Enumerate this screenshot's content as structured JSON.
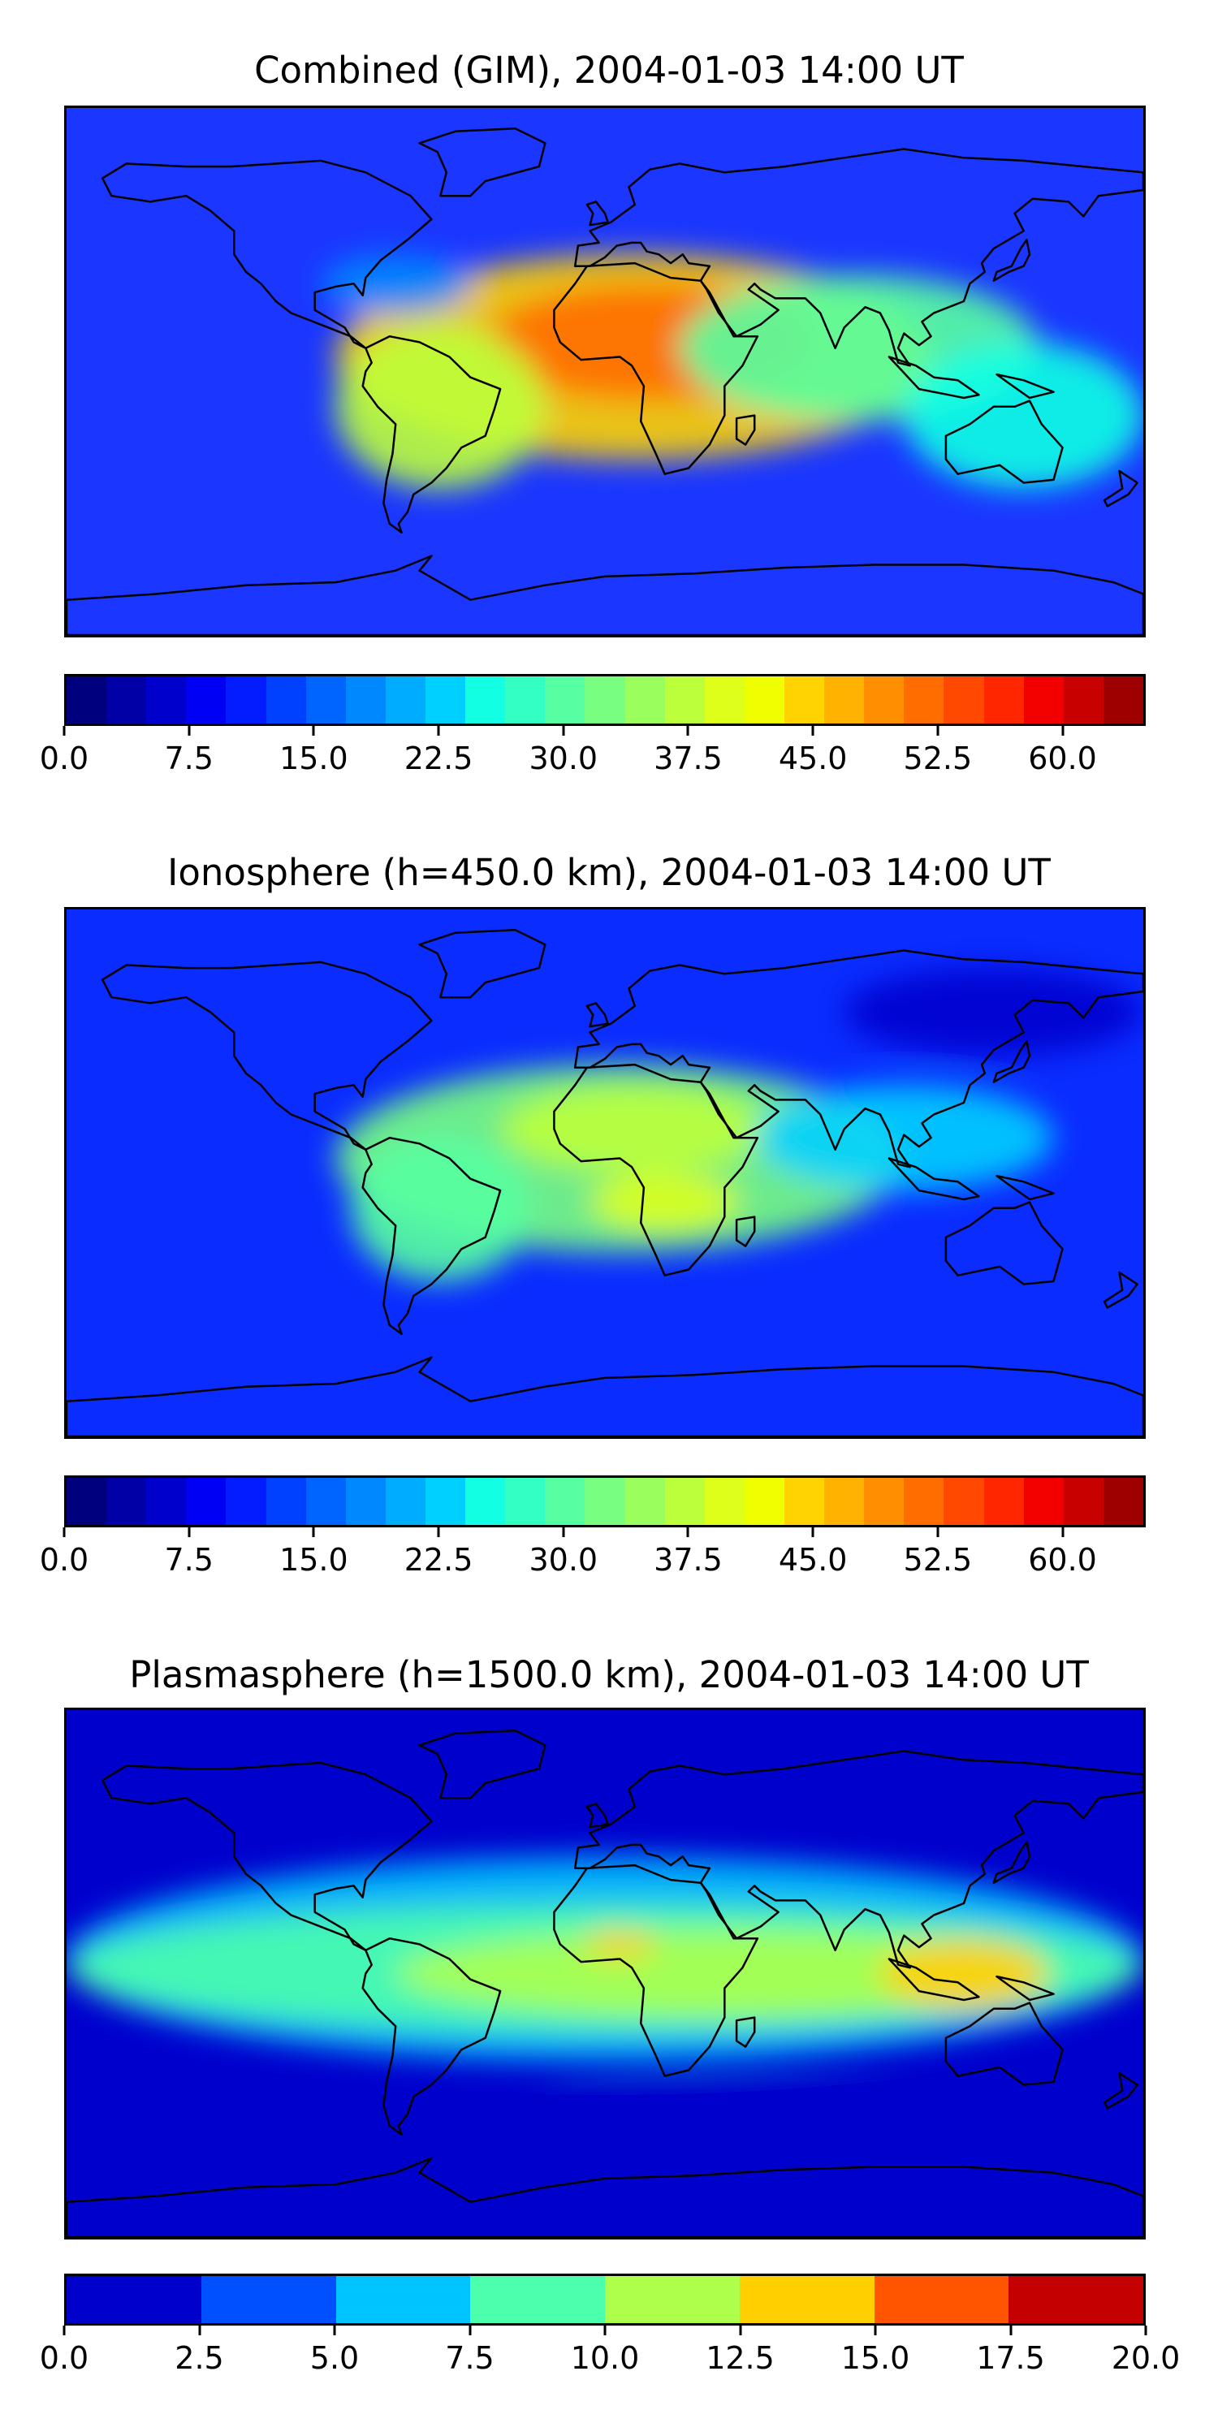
{
  "panels": [
    {
      "title": "Combined (GIM), 2004-01-03 14:00 UT",
      "base_color": "#1a36ff",
      "colorbar": {
        "colors": [
          "#00007f",
          "#0000a6",
          "#0000cd",
          "#0000f5",
          "#001cff",
          "#0040ff",
          "#0064ff",
          "#0088ff",
          "#00acff",
          "#00d0ff",
          "#12ffe4",
          "#34ffc3",
          "#56ffa1",
          "#78ff7f",
          "#9aff5d",
          "#bcff3b",
          "#deff19",
          "#f0ff00",
          "#ffd300",
          "#ffb200",
          "#ff8f00",
          "#ff6c00",
          "#ff4900",
          "#ff2600",
          "#f20000",
          "#c80000",
          "#9e0000"
        ],
        "ticks": [
          "0.0",
          "7.5",
          "15.0",
          "22.5",
          "30.0",
          "37.5",
          "45.0",
          "52.5",
          "60.0"
        ],
        "range": [
          0,
          65
        ]
      },
      "blobs": [
        {
          "lon": 10,
          "lat": 5,
          "rx": 100,
          "ry": 35,
          "value": 45
        },
        {
          "lon": 15,
          "lat": 10,
          "rx": 55,
          "ry": 20,
          "value": 52
        },
        {
          "lon": -55,
          "lat": -12,
          "rx": 35,
          "ry": 28,
          "value": 38
        },
        {
          "lon": 85,
          "lat": 8,
          "rx": 60,
          "ry": 25,
          "value": 30
        },
        {
          "lon": 140,
          "lat": -15,
          "rx": 40,
          "ry": 25,
          "value": 26
        },
        {
          "lon": -70,
          "lat": 30,
          "rx": 25,
          "ry": 10,
          "value": 18
        }
      ]
    },
    {
      "title": "Ionosphere  (h=450.0 km), 2004-01-03 14:00 UT",
      "base_color": "#0a2cff",
      "colorbar": {
        "colors": [
          "#00007f",
          "#0000a6",
          "#0000cd",
          "#0000f5",
          "#001cff",
          "#0040ff",
          "#0064ff",
          "#0088ff",
          "#00acff",
          "#00d0ff",
          "#12ffe4",
          "#34ffc3",
          "#56ffa1",
          "#78ff7f",
          "#9aff5d",
          "#bcff3b",
          "#deff19",
          "#f0ff00",
          "#ffd300",
          "#ffb200",
          "#ff8f00",
          "#ff6c00",
          "#ff4900",
          "#ff2600",
          "#f20000",
          "#c80000",
          "#9e0000"
        ],
        "ticks": [
          "0.0",
          "7.5",
          "15.0",
          "22.5",
          "30.0",
          "37.5",
          "45.0",
          "52.5",
          "60.0"
        ],
        "range": [
          0,
          65
        ]
      },
      "blobs": [
        {
          "lon": 5,
          "lat": 5,
          "rx": 95,
          "ry": 32,
          "value": 32
        },
        {
          "lon": 10,
          "lat": 15,
          "rx": 45,
          "ry": 15,
          "value": 38
        },
        {
          "lon": 20,
          "lat": -10,
          "rx": 25,
          "ry": 10,
          "value": 40
        },
        {
          "lon": -55,
          "lat": -12,
          "rx": 30,
          "ry": 25,
          "value": 30
        },
        {
          "lon": 100,
          "lat": 12,
          "rx": 50,
          "ry": 18,
          "value": 22
        },
        {
          "lon": 130,
          "lat": 55,
          "rx": 50,
          "ry": 15,
          "value": 5
        }
      ]
    },
    {
      "title": "Plasmasphere (h=1500.0 km), 2004-01-03 14:00 UT",
      "base_color": "#0000cd",
      "colorbar": {
        "colors": [
          "#0000cd",
          "#0050ff",
          "#00c4ff",
          "#4bffad",
          "#adff4b",
          "#ffcf00",
          "#ff5400",
          "#c50000"
        ],
        "ticks": [
          "0.0",
          "2.5",
          "5.0",
          "7.5",
          "10.0",
          "12.5",
          "15.0",
          "17.5",
          "20.0"
        ],
        "range": [
          0,
          20
        ]
      },
      "blobs": [
        {
          "lon": 0,
          "lat": 5,
          "rx": 180,
          "ry": 35,
          "value": 6
        },
        {
          "lon": 0,
          "lat": 2,
          "rx": 180,
          "ry": 22,
          "value": 8.5
        },
        {
          "lon": 40,
          "lat": 0,
          "rx": 110,
          "ry": 15,
          "value": 11
        },
        {
          "lon": 120,
          "lat": 0,
          "rx": 28,
          "ry": 12,
          "value": 13.5
        },
        {
          "lon": 5,
          "lat": 10,
          "rx": 12,
          "ry": 5,
          "value": 13.5
        },
        {
          "lon": 40,
          "lat": -45,
          "rx": 60,
          "ry": 8,
          "value": 1
        }
      ]
    }
  ]
}
